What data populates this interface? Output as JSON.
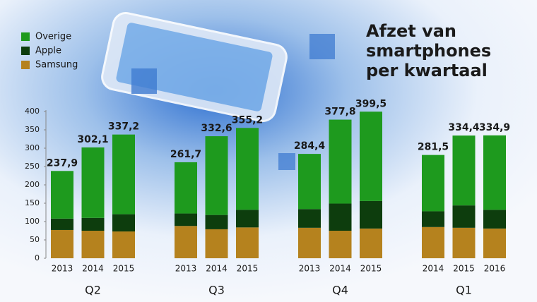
{
  "chart_data": {
    "type": "stacked-bar",
    "title": [
      "Afzet van",
      "smartphones",
      "per kwartaal"
    ],
    "groups": [
      {
        "name": "Q2",
        "categories": [
          "2013",
          "2014",
          "2015"
        ]
      },
      {
        "name": "Q3",
        "categories": [
          "2013",
          "2014",
          "2015"
        ]
      },
      {
        "name": "Q4",
        "categories": [
          "2013",
          "2014",
          "2015"
        ]
      },
      {
        "name": "Q1",
        "categories": [
          "2014",
          "2015",
          "2016"
        ]
      }
    ],
    "series": [
      {
        "name": "Samsung",
        "color": "#b5821e",
        "values": [
          77,
          75,
          73,
          88,
          79,
          84,
          83,
          75,
          81,
          85,
          83,
          81
        ]
      },
      {
        "name": "Apple",
        "color": "#0d3d0d",
        "values": [
          31,
          35,
          47,
          34,
          39,
          48,
          51,
          74,
          75,
          43,
          61,
          51
        ]
      },
      {
        "name": "Overige",
        "color": "#1e9a1e",
        "values": [
          129.9,
          192.1,
          217.2,
          139.7,
          214.6,
          223.2,
          150.4,
          228.8,
          243.5,
          153.5,
          190.4,
          202.9
        ]
      }
    ],
    "totals": {
      "values": [
        237.9,
        302.1,
        337.2,
        261.7,
        332.6,
        355.2,
        284.4,
        377.8,
        399.5,
        281.5,
        334.4,
        334.9
      ],
      "value_labels": [
        "237,9",
        "302,1",
        "337,2",
        "261,7",
        "332,6",
        "355,2",
        "284,4",
        "377,8",
        "399,5",
        "281,5",
        "334,4",
        "334,9"
      ]
    },
    "ylim": [
      0,
      400
    ],
    "yticks": [
      0,
      50,
      100,
      150,
      200,
      250,
      300,
      350,
      400
    ],
    "grid": false
  }
}
